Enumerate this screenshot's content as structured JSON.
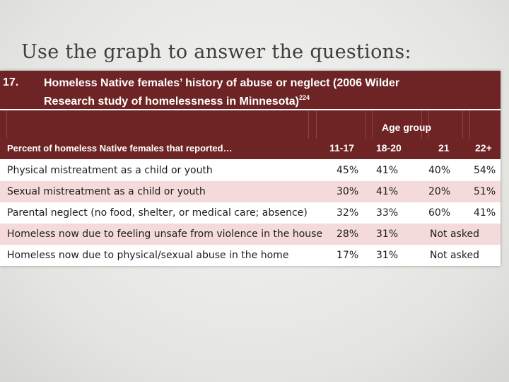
{
  "slide_title": "Use the graph to answer the questions:",
  "table": {
    "number": "17.",
    "title_line1": "Homeless Native females’ history of abuse or neglect (2006 Wilder",
    "title_line2": "Research study of homelessness in Minnesota)",
    "title_footnote": "224",
    "group_header": "Age group",
    "row_header": "Percent of homeless Native females that reported…",
    "columns": [
      "11-17",
      "18-20",
      "21",
      "22+"
    ],
    "rows": [
      {
        "label": "Physical mistreatment as a child or youth",
        "cells": [
          "45%",
          "41%",
          "40%",
          "54%"
        ]
      },
      {
        "label": "Sexual mistreatment as a child or youth",
        "cells": [
          "30%",
          "41%",
          "20%",
          "51%"
        ]
      },
      {
        "label": "Parental neglect (no food, shelter, or medical care; absence)",
        "cells": [
          "32%",
          "33%",
          "60%",
          "41%"
        ]
      },
      {
        "label": "Homeless now due to feeling unsafe from violence in the house",
        "cells": [
          "28%",
          "31%",
          "Not asked"
        ]
      },
      {
        "label": "Homeless now due to physical/sexual abuse in the home",
        "cells": [
          "17%",
          "31%",
          "Not asked"
        ]
      }
    ]
  },
  "colors": {
    "header_bg": "#6e2425",
    "pink_row": "#f4dada",
    "white_row": "#ffffff"
  }
}
